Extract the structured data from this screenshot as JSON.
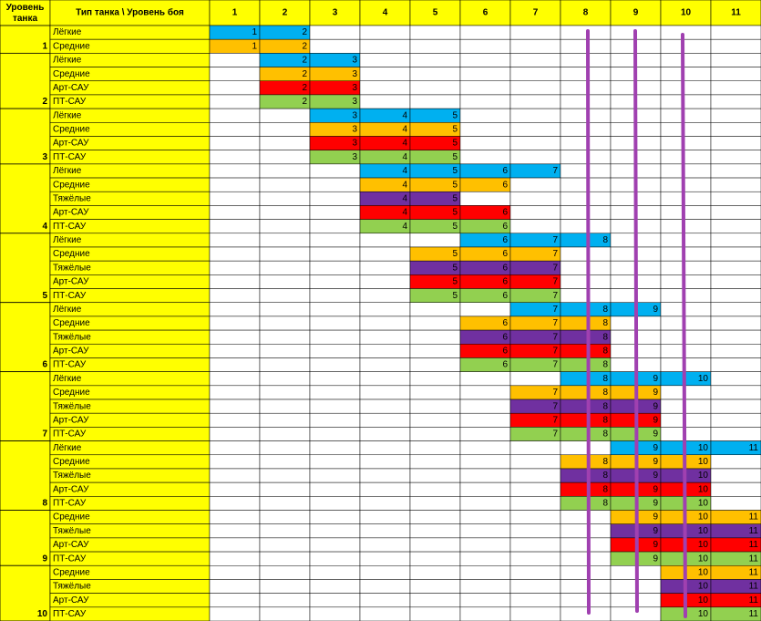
{
  "header": {
    "tier": "Уровень танка",
    "type": "Тип  танка \\ Уровень боя",
    "battle_levels": [
      1,
      2,
      3,
      4,
      5,
      6,
      7,
      8,
      9,
      10,
      11
    ]
  },
  "groups": [
    {
      "tier": 1,
      "rows": [
        {
          "type": "Лёгкие",
          "color": "#00b0f0",
          "cells": [
            1,
            2,
            null,
            null,
            null,
            null,
            null,
            null,
            null,
            null,
            null
          ]
        },
        {
          "type": "Средние",
          "color": "#ffc000",
          "cells": [
            1,
            2,
            null,
            null,
            null,
            null,
            null,
            null,
            null,
            null,
            null
          ]
        }
      ]
    },
    {
      "tier": 2,
      "rows": [
        {
          "type": "Лёгкие",
          "color": "#00b0f0",
          "cells": [
            null,
            2,
            3,
            null,
            null,
            null,
            null,
            null,
            null,
            null,
            null
          ]
        },
        {
          "type": "Средние",
          "color": "#ffc000",
          "cells": [
            null,
            2,
            3,
            null,
            null,
            null,
            null,
            null,
            null,
            null,
            null
          ]
        },
        {
          "type": "Арт-САУ",
          "color": "#ff0000",
          "cells": [
            null,
            2,
            3,
            null,
            null,
            null,
            null,
            null,
            null,
            null,
            null
          ]
        },
        {
          "type": "ПТ-САУ",
          "color": "#92d050",
          "cells": [
            null,
            2,
            3,
            null,
            null,
            null,
            null,
            null,
            null,
            null,
            null
          ]
        }
      ]
    },
    {
      "tier": 3,
      "rows": [
        {
          "type": "Лёгкие",
          "color": "#00b0f0",
          "cells": [
            null,
            null,
            3,
            4,
            5,
            null,
            null,
            null,
            null,
            null,
            null
          ]
        },
        {
          "type": "Средние",
          "color": "#ffc000",
          "cells": [
            null,
            null,
            3,
            4,
            5,
            null,
            null,
            null,
            null,
            null,
            null
          ]
        },
        {
          "type": "Арт-САУ",
          "color": "#ff0000",
          "cells": [
            null,
            null,
            3,
            4,
            5,
            null,
            null,
            null,
            null,
            null,
            null
          ]
        },
        {
          "type": "ПТ-САУ",
          "color": "#92d050",
          "cells": [
            null,
            null,
            3,
            4,
            5,
            null,
            null,
            null,
            null,
            null,
            null
          ]
        }
      ]
    },
    {
      "tier": 4,
      "rows": [
        {
          "type": "Лёгкие",
          "color": "#00b0f0",
          "cells": [
            null,
            null,
            null,
            4,
            5,
            6,
            7,
            null,
            null,
            null,
            null
          ]
        },
        {
          "type": "Средние",
          "color": "#ffc000",
          "cells": [
            null,
            null,
            null,
            4,
            5,
            6,
            null,
            null,
            null,
            null,
            null
          ]
        },
        {
          "type": "Тяжёлые",
          "color": "#7030a0",
          "cells": [
            null,
            null,
            null,
            4,
            5,
            null,
            null,
            null,
            null,
            null,
            null
          ]
        },
        {
          "type": "Арт-САУ",
          "color": "#ff0000",
          "cells": [
            null,
            null,
            null,
            4,
            5,
            6,
            null,
            null,
            null,
            null,
            null
          ]
        },
        {
          "type": "ПТ-САУ",
          "color": "#92d050",
          "cells": [
            null,
            null,
            null,
            4,
            5,
            6,
            null,
            null,
            null,
            null,
            null
          ]
        }
      ]
    },
    {
      "tier": 5,
      "rows": [
        {
          "type": "Лёгкие",
          "color": "#00b0f0",
          "cells": [
            null,
            null,
            null,
            null,
            null,
            6,
            7,
            8,
            null,
            null,
            null
          ]
        },
        {
          "type": "Средние",
          "color": "#ffc000",
          "cells": [
            null,
            null,
            null,
            null,
            5,
            6,
            7,
            null,
            null,
            null,
            null
          ]
        },
        {
          "type": "Тяжёлые",
          "color": "#7030a0",
          "cells": [
            null,
            null,
            null,
            null,
            5,
            6,
            7,
            null,
            null,
            null,
            null
          ]
        },
        {
          "type": "Арт-САУ",
          "color": "#ff0000",
          "cells": [
            null,
            null,
            null,
            null,
            5,
            6,
            7,
            null,
            null,
            null,
            null
          ]
        },
        {
          "type": "ПТ-САУ",
          "color": "#92d050",
          "cells": [
            null,
            null,
            null,
            null,
            5,
            6,
            7,
            null,
            null,
            null,
            null
          ]
        }
      ]
    },
    {
      "tier": 6,
      "rows": [
        {
          "type": "Лёгкие",
          "color": "#00b0f0",
          "cells": [
            null,
            null,
            null,
            null,
            null,
            null,
            7,
            8,
            9,
            null,
            null
          ]
        },
        {
          "type": "Средние",
          "color": "#ffc000",
          "cells": [
            null,
            null,
            null,
            null,
            null,
            6,
            7,
            8,
            null,
            null,
            null
          ]
        },
        {
          "type": "Тяжёлые",
          "color": "#7030a0",
          "cells": [
            null,
            null,
            null,
            null,
            null,
            6,
            7,
            8,
            null,
            null,
            null
          ]
        },
        {
          "type": "Арт-САУ",
          "color": "#ff0000",
          "cells": [
            null,
            null,
            null,
            null,
            null,
            6,
            7,
            8,
            null,
            null,
            null
          ]
        },
        {
          "type": "ПТ-САУ",
          "color": "#92d050",
          "cells": [
            null,
            null,
            null,
            null,
            null,
            6,
            7,
            8,
            null,
            null,
            null
          ]
        }
      ]
    },
    {
      "tier": 7,
      "rows": [
        {
          "type": "Лёгкие",
          "color": "#00b0f0",
          "cells": [
            null,
            null,
            null,
            null,
            null,
            null,
            null,
            8,
            9,
            10,
            null
          ]
        },
        {
          "type": "Средние",
          "color": "#ffc000",
          "cells": [
            null,
            null,
            null,
            null,
            null,
            null,
            7,
            8,
            9,
            null,
            null
          ]
        },
        {
          "type": "Тяжёлые",
          "color": "#7030a0",
          "cells": [
            null,
            null,
            null,
            null,
            null,
            null,
            7,
            8,
            9,
            null,
            null
          ]
        },
        {
          "type": "Арт-САУ",
          "color": "#ff0000",
          "cells": [
            null,
            null,
            null,
            null,
            null,
            null,
            7,
            8,
            9,
            null,
            null
          ]
        },
        {
          "type": "ПТ-САУ",
          "color": "#92d050",
          "cells": [
            null,
            null,
            null,
            null,
            null,
            null,
            7,
            8,
            9,
            null,
            null
          ]
        }
      ]
    },
    {
      "tier": 8,
      "rows": [
        {
          "type": "Лёгкие",
          "color": "#00b0f0",
          "cells": [
            null,
            null,
            null,
            null,
            null,
            null,
            null,
            null,
            9,
            10,
            11
          ]
        },
        {
          "type": "Средние",
          "color": "#ffc000",
          "cells": [
            null,
            null,
            null,
            null,
            null,
            null,
            null,
            8,
            9,
            10,
            null
          ]
        },
        {
          "type": "Тяжёлые",
          "color": "#7030a0",
          "cells": [
            null,
            null,
            null,
            null,
            null,
            null,
            null,
            8,
            9,
            10,
            null
          ]
        },
        {
          "type": "Арт-САУ",
          "color": "#ff0000",
          "cells": [
            null,
            null,
            null,
            null,
            null,
            null,
            null,
            8,
            9,
            10,
            null
          ]
        },
        {
          "type": "ПТ-САУ",
          "color": "#92d050",
          "cells": [
            null,
            null,
            null,
            null,
            null,
            null,
            null,
            8,
            9,
            10,
            null
          ]
        }
      ]
    },
    {
      "tier": 9,
      "rows": [
        {
          "type": "Средние",
          "color": "#ffc000",
          "cells": [
            null,
            null,
            null,
            null,
            null,
            null,
            null,
            null,
            9,
            10,
            11
          ]
        },
        {
          "type": "Тяжёлые",
          "color": "#7030a0",
          "cells": [
            null,
            null,
            null,
            null,
            null,
            null,
            null,
            null,
            9,
            10,
            11
          ]
        },
        {
          "type": "Арт-САУ",
          "color": "#ff0000",
          "cells": [
            null,
            null,
            null,
            null,
            null,
            null,
            null,
            null,
            9,
            10,
            11
          ]
        },
        {
          "type": "ПТ-САУ",
          "color": "#92d050",
          "cells": [
            null,
            null,
            null,
            null,
            null,
            null,
            null,
            null,
            9,
            10,
            11
          ]
        }
      ]
    },
    {
      "tier": 10,
      "rows": [
        {
          "type": "Средние",
          "color": "#ffc000",
          "cells": [
            null,
            null,
            null,
            null,
            null,
            null,
            null,
            null,
            null,
            10,
            11
          ]
        },
        {
          "type": "Тяжёлые",
          "color": "#7030a0",
          "cells": [
            null,
            null,
            null,
            null,
            null,
            null,
            null,
            null,
            null,
            10,
            11
          ]
        },
        {
          "type": "Арт-САУ",
          "color": "#ff0000",
          "cells": [
            null,
            null,
            null,
            null,
            null,
            null,
            null,
            null,
            null,
            10,
            11
          ]
        },
        {
          "type": "ПТ-САУ",
          "color": "#92d050",
          "cells": [
            null,
            null,
            null,
            null,
            null,
            null,
            null,
            null,
            null,
            10,
            11
          ]
        }
      ]
    }
  ]
}
